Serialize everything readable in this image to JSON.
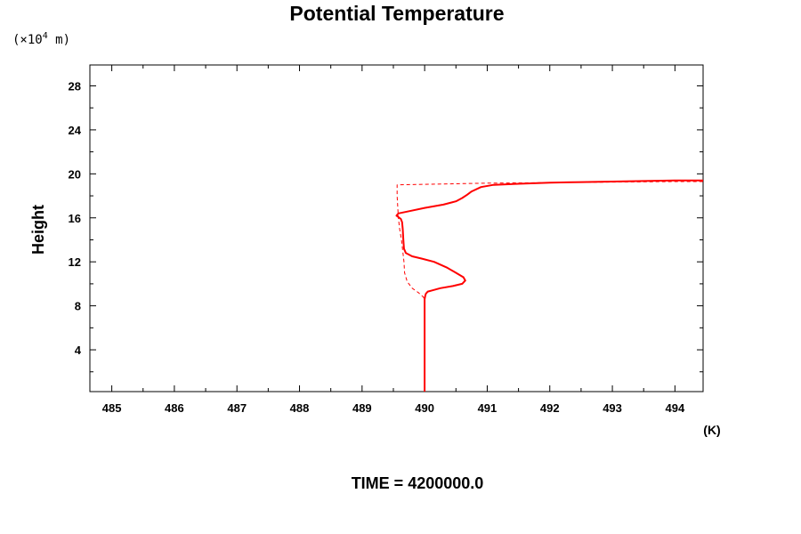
{
  "chart_data": {
    "type": "line",
    "title": "Potential Temperature",
    "ylabel": "Height",
    "yunit_prefix": "(×10",
    "yunit_exp": "4",
    "yunit_suffix": " m)",
    "xunit": "(K)",
    "footer": "TIME = 4200000.0",
    "xlim": [
      484.65,
      494.45
    ],
    "ylim": [
      0.2,
      29.9
    ],
    "xticks": [
      485,
      486,
      487,
      488,
      489,
      490,
      491,
      492,
      493,
      494
    ],
    "yticks": [
      4,
      8,
      12,
      16,
      20,
      24,
      28
    ],
    "grid": false,
    "series": [
      {
        "style": "solid",
        "color": "#ff0000",
        "x": [
          490.0,
          490.0,
          490.0,
          490.0,
          490.01,
          490.02,
          490.05,
          490.12,
          490.25,
          490.45,
          490.6,
          490.65,
          490.62,
          490.5,
          490.35,
          490.15,
          489.95,
          489.8,
          489.7,
          489.67,
          489.66,
          489.65,
          489.64,
          489.62,
          489.55,
          489.58,
          489.75,
          490.0,
          490.3,
          490.5,
          490.6,
          490.68,
          490.75,
          490.9,
          491.1,
          491.5,
          492.0,
          492.5,
          493.0,
          493.5,
          494.0,
          494.45
        ],
        "y": [
          0.2,
          4.0,
          7.0,
          8.6,
          8.9,
          9.1,
          9.3,
          9.4,
          9.6,
          9.8,
          10.0,
          10.3,
          10.6,
          11.0,
          11.5,
          12.0,
          12.3,
          12.5,
          12.8,
          13.2,
          14.0,
          15.0,
          15.6,
          15.9,
          16.2,
          16.4,
          16.6,
          16.9,
          17.2,
          17.5,
          17.8,
          18.1,
          18.4,
          18.8,
          19.0,
          19.1,
          19.2,
          19.25,
          19.3,
          19.35,
          19.4,
          19.4
        ]
      },
      {
        "style": "dashed",
        "color": "#ff0000",
        "x": [
          490.0,
          490.0,
          490.0,
          489.98,
          489.9,
          489.8,
          489.72,
          489.68,
          489.67,
          489.65,
          489.63,
          489.6,
          489.58,
          489.57,
          489.56,
          489.56,
          490.0,
          491.0,
          492.0,
          493.0,
          494.0,
          494.45
        ],
        "y": [
          0.2,
          4.0,
          8.5,
          8.8,
          9.2,
          9.6,
          10.2,
          11.0,
          12.0,
          13.0,
          14.0,
          15.0,
          16.0,
          17.0,
          18.0,
          19.0,
          19.05,
          19.15,
          19.2,
          19.25,
          19.3,
          19.3
        ]
      }
    ]
  }
}
